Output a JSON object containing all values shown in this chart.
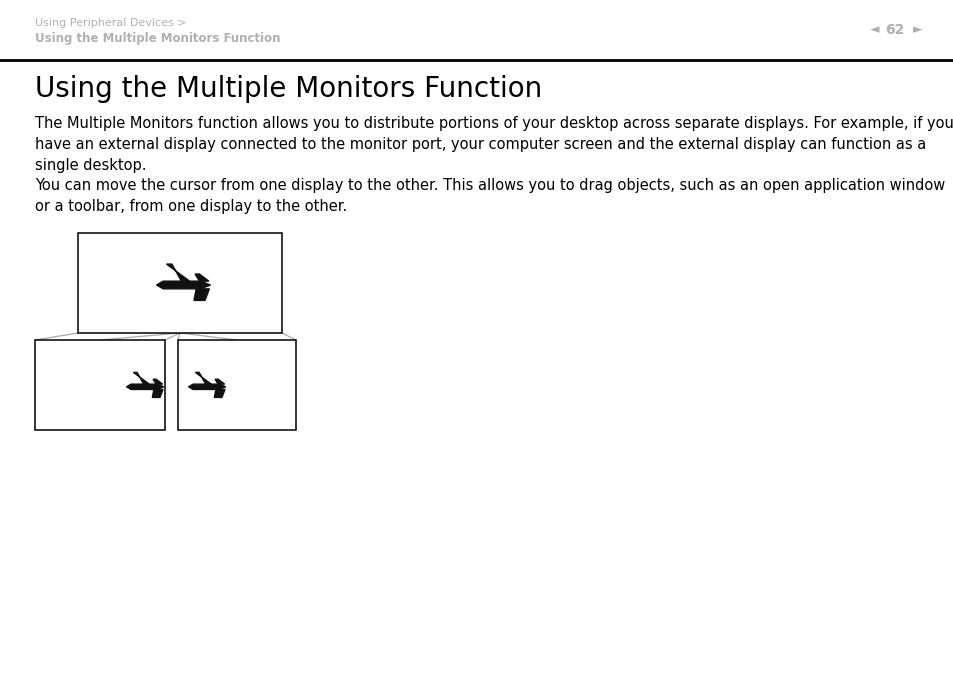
{
  "bg_color": "#ffffff",
  "header_text_line1": "Using Peripheral Devices >",
  "header_text_line2": "Using the Multiple Monitors Function",
  "page_number": "62",
  "header_text_color": "#b0b0b0",
  "title": "Using the Multiple Monitors Function",
  "title_fontsize": 20,
  "title_color": "#000000",
  "body_text1": "The Multiple Monitors function allows you to distribute portions of your desktop across separate displays. For example, if you\nhave an external display connected to the monitor port, your computer screen and the external display can function as a\nsingle desktop.",
  "body_text2": "You can move the cursor from one display to the other. This allows you to drag objects, such as an open application window\nor a toolbar, from one display to the other.",
  "body_fontsize": 10.5,
  "body_color": "#000000",
  "separator_color": "#000000",
  "line_color": "#aaaaaa"
}
